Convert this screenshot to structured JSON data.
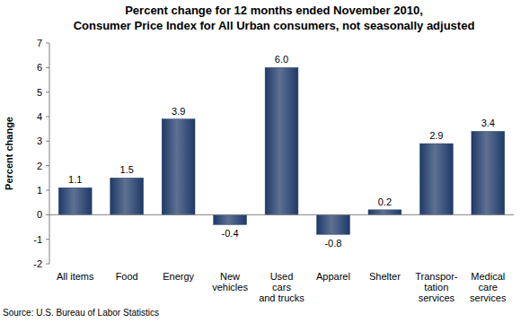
{
  "chart_data": {
    "type": "bar",
    "title": "Percent change for 12 months ended November 2010,\nConsumer Price Index for All Urban consumers, not seasonally adjusted",
    "y_label": "Percent change",
    "source": "Source: U.S. Bureau of Labor Statistics",
    "categories": [
      "All items",
      "Food",
      "Energy",
      "New\nvehicles",
      "Used\ncars\nand trucks",
      "Apparel",
      "Shelter",
      "Transpor-\ntation\nservices",
      "Medical\ncare\nservices"
    ],
    "values": [
      1.1,
      1.5,
      3.9,
      -0.4,
      6.0,
      -0.8,
      0.2,
      2.9,
      3.4
    ],
    "value_labels": [
      "1.1",
      "1.5",
      "3.9",
      "-0.4",
      "6.0",
      "-0.8",
      "0.2",
      "2.9",
      "3.4"
    ],
    "color": "#1f3a68",
    "ylim": [
      -2,
      7
    ],
    "yticks": [
      -2,
      -1,
      0,
      1,
      2,
      3,
      4,
      5,
      6,
      7
    ],
    "grid": false,
    "data_labels": true
  }
}
